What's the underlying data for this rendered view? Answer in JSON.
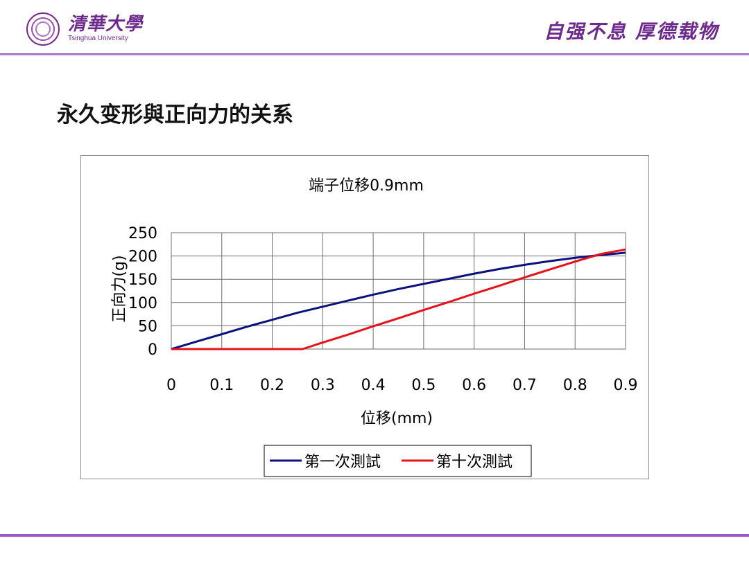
{
  "header": {
    "logo_cn": "清華大學",
    "logo_en": "Tsinghua University",
    "motto": "自强不息 厚德载物"
  },
  "slide": {
    "title": "永久变形與正向力的关系"
  },
  "colors": {
    "accent": "#9b59c5",
    "series1": "#0a127e",
    "series2": "#e8101a"
  },
  "chart_data": {
    "type": "line",
    "title": "端子位移0.9mm",
    "xlabel": "位移(mm)",
    "ylabel": "正向力(g)",
    "xlim": [
      0,
      0.9
    ],
    "ylim": [
      0,
      250
    ],
    "x_ticks": [
      "0",
      "0.1",
      "0.2",
      "0.3",
      "0.4",
      "0.5",
      "0.6",
      "0.7",
      "0.8",
      "0.9"
    ],
    "y_ticks": [
      "0",
      "50",
      "100",
      "150",
      "200",
      "250"
    ],
    "grid": true,
    "legend_position": "bottom",
    "series": [
      {
        "name": "第一次測試",
        "x": [
          0,
          0.05,
          0.1,
          0.15,
          0.2,
          0.25,
          0.3,
          0.35,
          0.4,
          0.45,
          0.5,
          0.55,
          0.6,
          0.65,
          0.7,
          0.75,
          0.8,
          0.85,
          0.9
        ],
        "y": [
          0,
          16,
          32,
          48,
          63,
          78,
          91,
          104,
          117,
          129,
          140,
          151,
          162,
          172,
          181,
          189,
          196,
          202,
          207
        ]
      },
      {
        "name": "第十次測試",
        "x": [
          0,
          0.1,
          0.2,
          0.26,
          0.3,
          0.35,
          0.4,
          0.45,
          0.5,
          0.55,
          0.6,
          0.65,
          0.7,
          0.75,
          0.8,
          0.85,
          0.9
        ],
        "y": [
          0,
          0,
          0,
          0,
          14,
          31,
          49,
          66,
          84,
          101,
          119,
          136,
          154,
          171,
          188,
          204,
          214
        ]
      }
    ]
  }
}
